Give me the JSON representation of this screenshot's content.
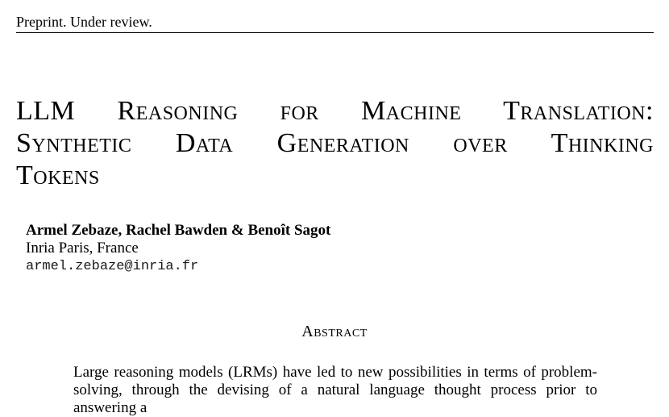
{
  "header": {
    "note": "Preprint. Under review."
  },
  "paper": {
    "title_lines": [
      "LLM Reasoning for Machine Translation:",
      "Synthetic Data Generation over Thinking",
      "Tokens"
    ],
    "authors": "Armel Zebaze, Rachel Bawden & Benoît Sagot",
    "affiliation": "Inria Paris, France",
    "email": "armel.zebaze@inria.fr"
  },
  "abstract": {
    "heading": "Abstract",
    "text": "Large reasoning models (LRMs) have led to new possibilities in terms of problem-solving, through the devising of a natural language thought process prior to answering a"
  }
}
